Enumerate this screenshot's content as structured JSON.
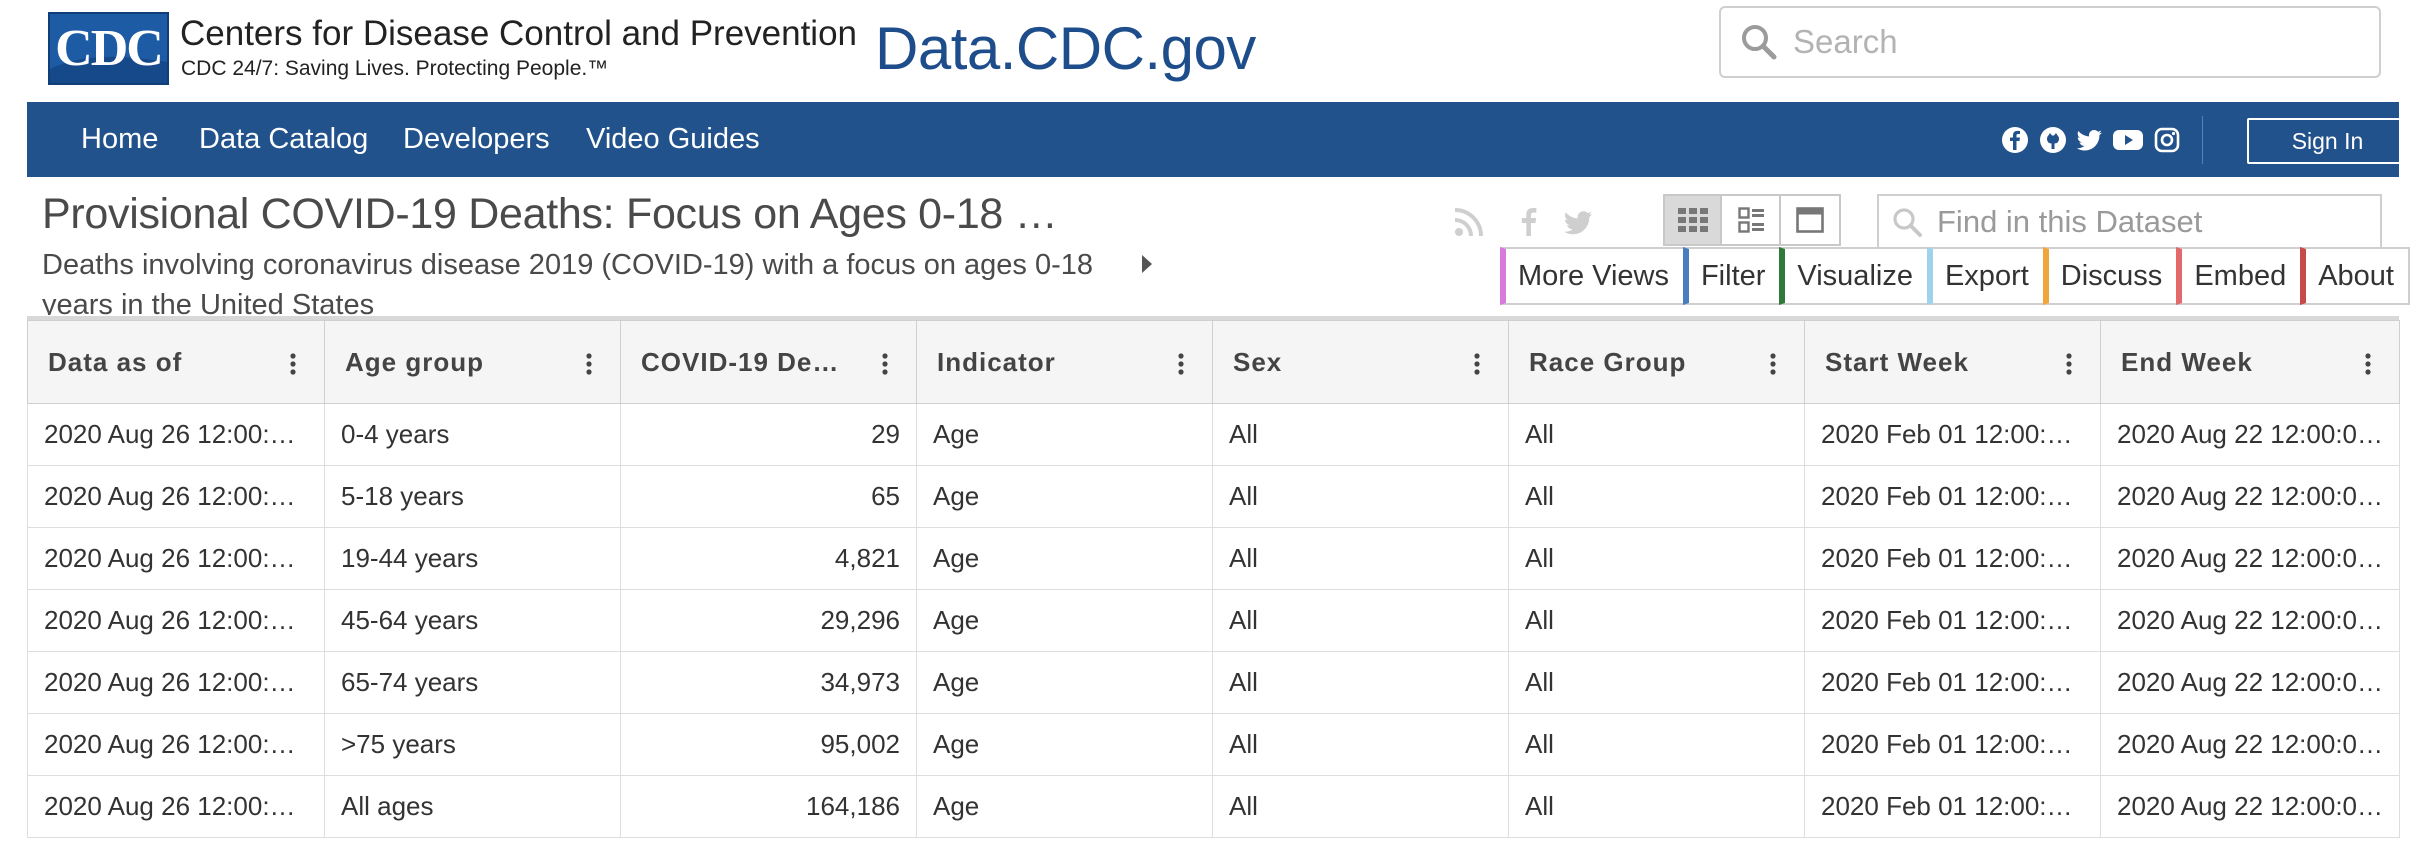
{
  "branding": {
    "logo_text": "CDC",
    "agency_name": "Centers for Disease Control and Prevention",
    "tagline": "CDC 24/7: Saving Lives. Protecting People.™",
    "site_title": "Data.CDC.gov"
  },
  "search": {
    "placeholder": "Search"
  },
  "nav": {
    "items": [
      {
        "label": "Home"
      },
      {
        "label": "Data Catalog"
      },
      {
        "label": "Developers"
      },
      {
        "label": "Video Guides"
      }
    ],
    "social_icons": [
      "facebook-icon",
      "github-icon",
      "twitter-icon",
      "youtube-icon",
      "instagram-icon"
    ],
    "sign_in_label": "Sign In",
    "bar_color": "#22528c"
  },
  "dataset": {
    "title": "Provisional COVID-19 Deaths: Focus on Ages 0-18 …",
    "description": "Deaths involving coronavirus disease 2019 (COVID-19) with a focus on ages 0-18 years in the United States"
  },
  "find": {
    "placeholder": "Find in this Dataset"
  },
  "toolbar": {
    "buttons": [
      {
        "label": "More Views",
        "accent": "#d77ad9"
      },
      {
        "label": "Filter",
        "accent": "#4a7cc0"
      },
      {
        "label": "Visualize",
        "accent": "#2f7a3a"
      },
      {
        "label": "Export",
        "accent": "#9fd3ec"
      },
      {
        "label": "Discuss",
        "accent": "#f0a63c"
      },
      {
        "label": "Embed",
        "accent": "#e36a6a"
      },
      {
        "label": "About",
        "accent": "#c74a4a"
      }
    ]
  },
  "table": {
    "columns": [
      "Data as of",
      "Age group",
      "COVID-19 Deat…",
      "Indicator",
      "Sex",
      "Race Group",
      "Start Week",
      "End Week"
    ],
    "rows": [
      [
        "2020 Aug 26 12:00:00 …",
        "0-4 years",
        "29",
        "Age",
        "All",
        "All",
        "2020 Feb 01 12:00:00 …",
        "2020 Aug 22 12:00:00 …"
      ],
      [
        "2020 Aug 26 12:00:00 …",
        "5-18 years",
        "65",
        "Age",
        "All",
        "All",
        "2020 Feb 01 12:00:00 …",
        "2020 Aug 22 12:00:00 …"
      ],
      [
        "2020 Aug 26 12:00:00 …",
        "19-44 years",
        "4,821",
        "Age",
        "All",
        "All",
        "2020 Feb 01 12:00:00 …",
        "2020 Aug 22 12:00:00 …"
      ],
      [
        "2020 Aug 26 12:00:00 …",
        "45-64 years",
        "29,296",
        "Age",
        "All",
        "All",
        "2020 Feb 01 12:00:00 …",
        "2020 Aug 22 12:00:00 …"
      ],
      [
        "2020 Aug 26 12:00:00 …",
        "65-74 years",
        "34,973",
        "Age",
        "All",
        "All",
        "2020 Feb 01 12:00:00 …",
        "2020 Aug 22 12:00:00 …"
      ],
      [
        "2020 Aug 26 12:00:00 …",
        ">75 years",
        "95,002",
        "Age",
        "All",
        "All",
        "2020 Feb 01 12:00:00 …",
        "2020 Aug 22 12:00:00 …"
      ],
      [
        "2020 Aug 26 12:00:00 …",
        "All ages",
        "164,186",
        "Age",
        "All",
        "All",
        "2020 Feb 01 12:00:00 …",
        "2020 Aug 22 12:00:00 …"
      ]
    ]
  }
}
